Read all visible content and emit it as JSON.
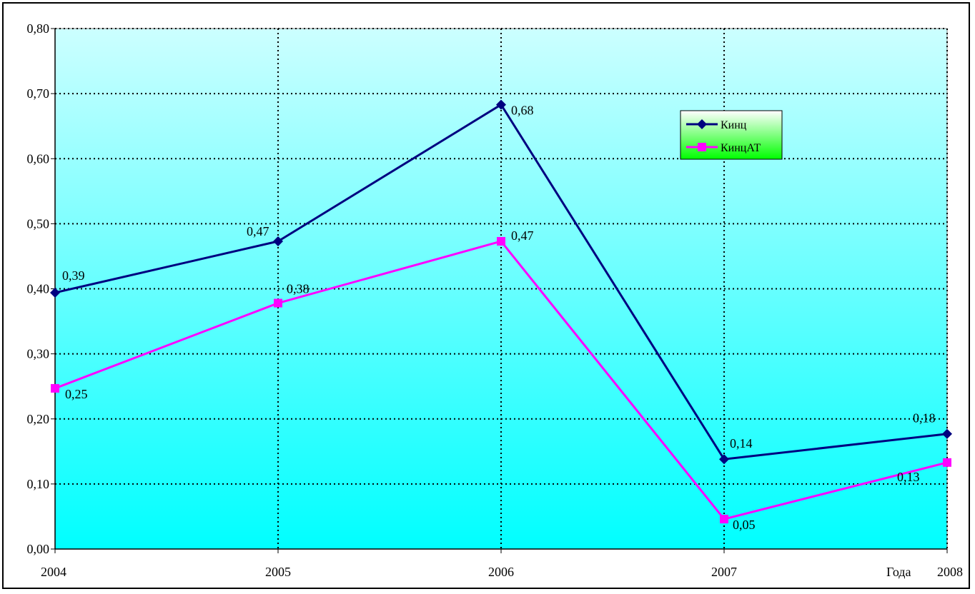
{
  "chart_data": {
    "type": "line",
    "title": "",
    "xlabel": "Года",
    "ylabel": "",
    "categories": [
      "2004",
      "2005",
      "2006",
      "2007",
      "2008"
    ],
    "ylim": [
      0,
      0.8
    ],
    "yticks": [
      "0,00",
      "0,10",
      "0,20",
      "0,30",
      "0,40",
      "0,50",
      "0,60",
      "0,70",
      "0,80"
    ],
    "grid": true,
    "legend_position": "top-right",
    "series": [
      {
        "name": "Кинц",
        "values": [
          0.394,
          0.473,
          0.683,
          0.138,
          0.177
        ],
        "labels": [
          "0,39",
          "0,47",
          "0,68",
          "0,14",
          "0,18"
        ],
        "color": "#000080",
        "marker": "diamond"
      },
      {
        "name": "КинцАТ",
        "values": [
          0.247,
          0.378,
          0.473,
          0.046,
          0.133
        ],
        "labels": [
          "0,25",
          "0,38",
          "0,47",
          "0,05",
          "0,13"
        ],
        "color": "#FF00FF",
        "marker": "square"
      }
    ],
    "colors": {
      "plot_top": "#CCFFFF",
      "plot_bottom": "#00FFFF",
      "legend_bg": "#00FF00"
    }
  }
}
